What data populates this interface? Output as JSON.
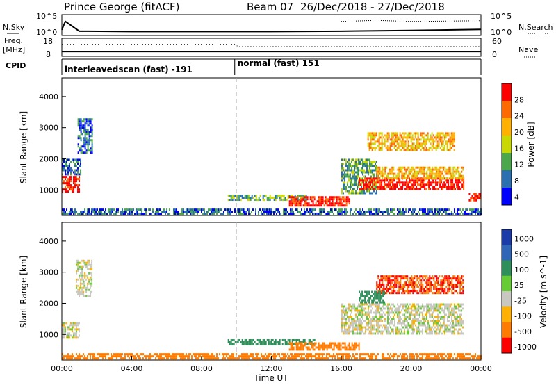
{
  "header": {
    "station": "Prince George (fitACF)",
    "beam": "Beam 07",
    "dates": "26/Dec/2018 - 27/Dec/2018"
  },
  "labels": {
    "nsky": "N.Sky",
    "nsearch": "N.Search",
    "freq_line1": "Freq.",
    "freq_line2": "[MHz]",
    "nave": "Nave",
    "cpid": "CPID",
    "xlabel": "Time UT"
  },
  "chart_data": [
    {
      "type": "line",
      "panel": "noise",
      "y_left_label": "N.Sky",
      "y_right_label": "N.Search",
      "y_left_ticks": [
        "10^5",
        "10^0"
      ],
      "y_right_ticks": [
        "10^5",
        "10^0"
      ],
      "log_scale": true,
      "series": [
        {
          "name": "N.Sky",
          "x": [
            0.0,
            0.2,
            0.5,
            1.0,
            4.0,
            8.0,
            12.0,
            16.0,
            20.0,
            24.0
          ],
          "y_log10": [
            1.2,
            3.5,
            2.5,
            0.8,
            0.7,
            0.7,
            0.7,
            0.8,
            1.0,
            1.3
          ]
        },
        {
          "name": "N.Search",
          "x": [
            16.0,
            18.0,
            20.0,
            22.0,
            24.0
          ],
          "y_log10": [
            3.5,
            3.8,
            3.5,
            3.6,
            3.7
          ]
        }
      ]
    },
    {
      "type": "line",
      "panel": "frequency",
      "y_left_label": "Freq. [MHz]",
      "y_left_ticks": [
        "18",
        "8"
      ],
      "y_right_label": "Nave",
      "y_right_ticks": [
        "60",
        "0"
      ],
      "series": [
        {
          "name": "Freq.",
          "x": [
            0,
            24
          ],
          "y": [
            10.3,
            10.3
          ]
        },
        {
          "name": "Nave",
          "x": [
            0,
            9.9,
            10.1,
            24
          ],
          "y": [
            42,
            42,
            35,
            35
          ]
        }
      ]
    },
    {
      "type": "table",
      "panel": "cpid",
      "label": "CPID",
      "segments": [
        {
          "start": 0,
          "end": 9.9,
          "label": "interleavedscan (fast) -191"
        },
        {
          "start": 9.9,
          "end": 24,
          "label": "normal (fast) 151"
        }
      ]
    },
    {
      "type": "heatmap",
      "panel": "power",
      "ylabel": "Slant Range [km]",
      "xlabel": "Time UT",
      "xlim": [
        0,
        24
      ],
      "ylim": [
        180,
        4600
      ],
      "yticks": [
        1000,
        2000,
        3000,
        4000
      ],
      "colorbar_label": "Power [dB]",
      "colorbar_ticks": [
        "28",
        "24",
        "20",
        "16",
        "12",
        "8",
        "4"
      ],
      "colorbar_colors": [
        "#ff0000",
        "#ff6a00",
        "#ffb000",
        "#c8d800",
        "#4aa84a",
        "#2a6fb0",
        "#0000ff"
      ],
      "regions": [
        {
          "t0": 0.0,
          "t1": 1.0,
          "r0": 950,
          "r1": 1450,
          "level": 28
        },
        {
          "t0": 0.0,
          "t1": 1.1,
          "r0": 1500,
          "r1": 2000,
          "level": 8
        },
        {
          "t0": 0.9,
          "t1": 1.7,
          "r0": 2200,
          "r1": 3300,
          "level": 8
        },
        {
          "t0": 0.0,
          "t1": 24.0,
          "r0": 200,
          "r1": 400,
          "level": 8
        },
        {
          "t0": 9.5,
          "t1": 14.0,
          "r0": 650,
          "r1": 850,
          "level": 12
        },
        {
          "t0": 13.0,
          "t1": 16.5,
          "r0": 500,
          "r1": 800,
          "level": 28
        },
        {
          "t0": 16.0,
          "t1": 18.0,
          "r0": 900,
          "r1": 2000,
          "level": 12
        },
        {
          "t0": 17.0,
          "t1": 23.0,
          "r0": 1000,
          "r1": 1400,
          "level": 28
        },
        {
          "t0": 18.0,
          "t1": 23.0,
          "r0": 1400,
          "r1": 1750,
          "level": 20
        },
        {
          "t0": 17.5,
          "t1": 22.5,
          "r0": 2300,
          "r1": 2850,
          "level": 20
        },
        {
          "t0": 23.3,
          "t1": 24.0,
          "r0": 650,
          "r1": 900,
          "level": 28
        }
      ]
    },
    {
      "type": "heatmap",
      "panel": "velocity",
      "ylabel": "Slant Range [km]",
      "xlabel": "Time UT",
      "xlim": [
        0,
        24
      ],
      "ylim": [
        180,
        4600
      ],
      "yticks": [
        1000,
        2000,
        3000,
        4000
      ],
      "xticks": [
        "00:00",
        "04:00",
        "08:00",
        "12:00",
        "16:00",
        "20:00",
        "00:00"
      ],
      "colorbar_label": "Velocity [m s^-1]",
      "colorbar_ticks": [
        "1000",
        "500",
        "100",
        "25",
        "-25",
        "-100",
        "-500",
        "-1000"
      ],
      "colorbar_colors": [
        "#1b3ba8",
        "#2f66b8",
        "#2f8f5a",
        "#66cc33",
        "#c8c8c0",
        "#ffb000",
        "#ff7a00",
        "#ff0000"
      ],
      "regions": [
        {
          "t0": 0.0,
          "t1": 1.0,
          "r0": 900,
          "r1": 1400,
          "value": 0
        },
        {
          "t0": 0.8,
          "t1": 1.7,
          "r0": 2200,
          "r1": 3400,
          "value": 0
        },
        {
          "t0": 0.0,
          "t1": 24.0,
          "r0": 200,
          "r1": 400,
          "value": -100
        },
        {
          "t0": 9.5,
          "t1": 14.5,
          "r0": 700,
          "r1": 850,
          "value": 100
        },
        {
          "t0": 13.0,
          "t1": 17.0,
          "r0": 500,
          "r1": 750,
          "value": -100
        },
        {
          "t0": 16.0,
          "t1": 23.0,
          "r0": 1000,
          "r1": 2000,
          "value": 0
        },
        {
          "t0": 18.0,
          "t1": 23.0,
          "r0": 2300,
          "r1": 2900,
          "value": -300
        },
        {
          "t0": 17.0,
          "t1": 18.5,
          "r0": 2000,
          "r1": 2400,
          "value": 100
        }
      ]
    }
  ]
}
